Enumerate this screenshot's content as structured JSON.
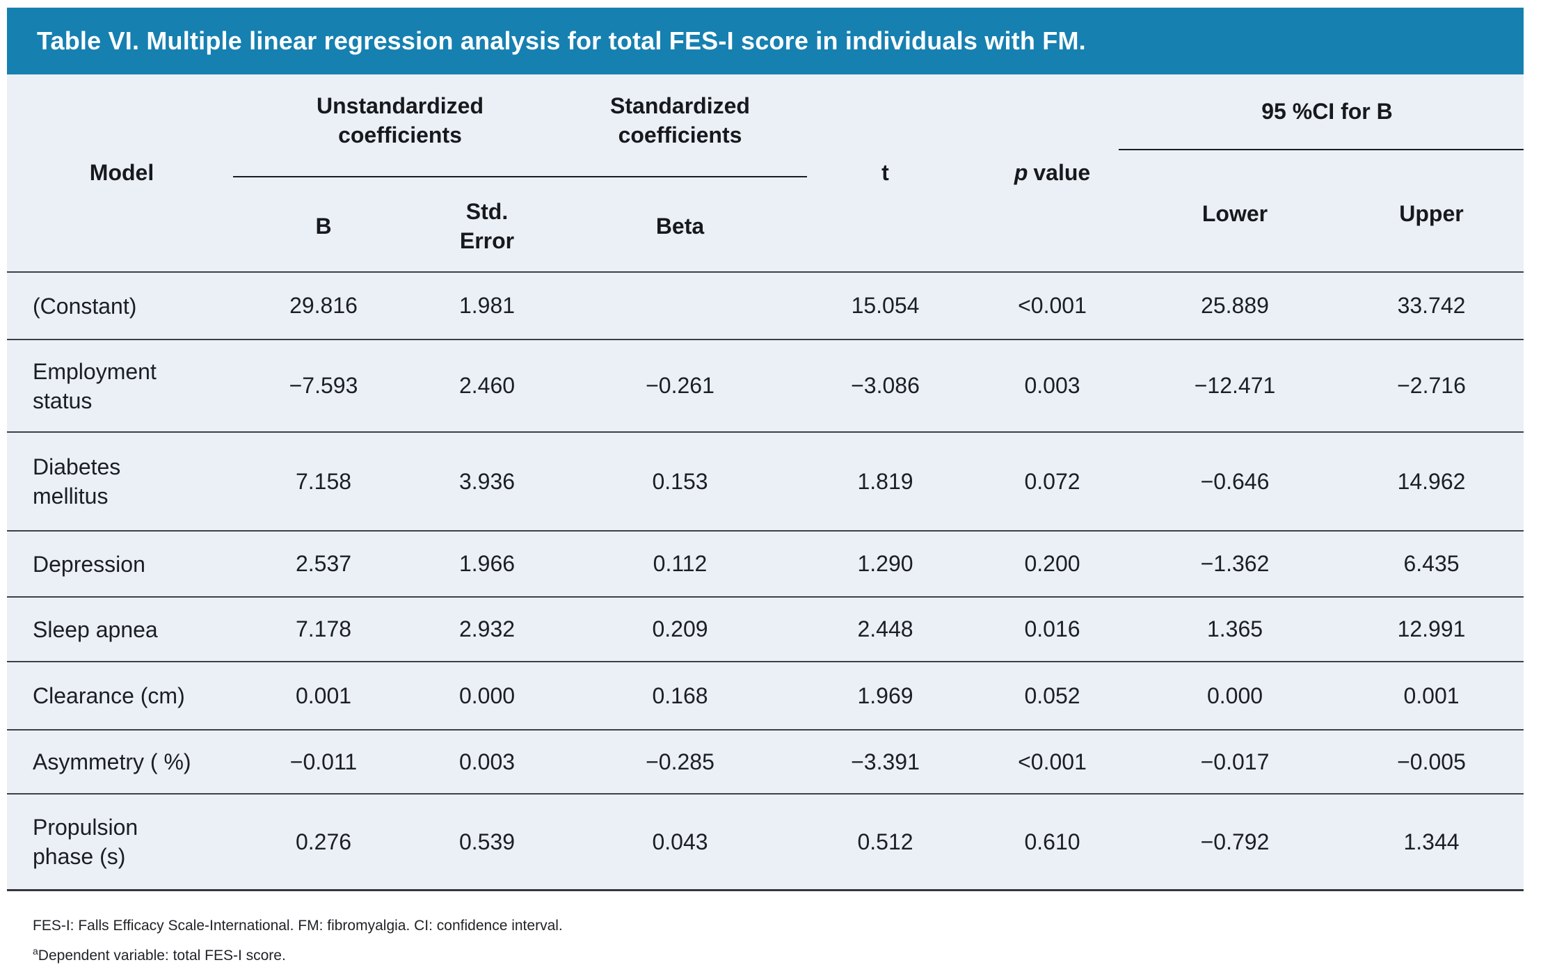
{
  "title": "Table VI. Multiple linear regression analysis for total FES-I score in individuals with FM.",
  "colors": {
    "title_bar_bg": "#1680B1",
    "title_text": "#FFFFFF",
    "table_bg": "#EBF0F7",
    "rule_color": "#3C4047",
    "text_color": "#1B1E22"
  },
  "header": {
    "model": "Model",
    "group_unstandardized": "Unstandardized coefficients",
    "group_standardized": "Standardized coefficients",
    "sub_b": "B",
    "sub_std_error": "Std. Error",
    "sub_beta": "Beta",
    "t": "t",
    "p_italic": "p",
    "p_rest": "value",
    "group_ci": "95 %CI for B",
    "sub_lower": "Lower",
    "sub_upper": "Upper"
  },
  "rows": [
    {
      "label1": "(Constant)",
      "b": "29.816",
      "std_error": "1.981",
      "beta": "",
      "t": "15.054",
      "p": "<0.001",
      "lower": "25.889",
      "upper": "33.742"
    },
    {
      "label1": "Employment",
      "label2": "status",
      "b": "−7.593",
      "std_error": "2.460",
      "beta": "−0.261",
      "t": "−3.086",
      "p": "0.003",
      "lower": "−12.471",
      "upper": "−2.716"
    },
    {
      "label1": "Diabetes",
      "label2": "mellitus",
      "b": "7.158",
      "std_error": "3.936",
      "beta": "0.153",
      "t": "1.819",
      "p": "0.072",
      "lower": "−0.646",
      "upper": "14.962"
    },
    {
      "label1": "Depression",
      "b": "2.537",
      "std_error": "1.966",
      "beta": "0.112",
      "t": "1.290",
      "p": "0.200",
      "lower": "−1.362",
      "upper": "6.435"
    },
    {
      "label1": "Sleep apnea",
      "b": "7.178",
      "std_error": "2.932",
      "beta": "0.209",
      "t": "2.448",
      "p": "0.016",
      "lower": "1.365",
      "upper": "12.991"
    },
    {
      "label1": "Clearance (cm)",
      "b": "0.001",
      "std_error": "0.000",
      "beta": "0.168",
      "t": "1.969",
      "p": "0.052",
      "lower": "0.000",
      "upper": "0.001"
    },
    {
      "label1": "Asymmetry ( %)",
      "b": "−0.011",
      "std_error": "0.003",
      "beta": "−0.285",
      "t": "−3.391",
      "p": "<0.001",
      "lower": "−0.017",
      "upper": "−0.005"
    },
    {
      "label1": "Propulsion",
      "label2": "phase (s)",
      "b": "0.276",
      "std_error": "0.539",
      "beta": "0.043",
      "t": "0.512",
      "p": "0.610",
      "lower": "−0.792",
      "upper": "1.344"
    }
  ],
  "footnotes": {
    "note1": "FES-I: Falls Efficacy Scale-International. FM: fibromyalgia. CI: confidence interval.",
    "note2_sup": "a",
    "note2": "Dependent variable: total FES-I score."
  }
}
